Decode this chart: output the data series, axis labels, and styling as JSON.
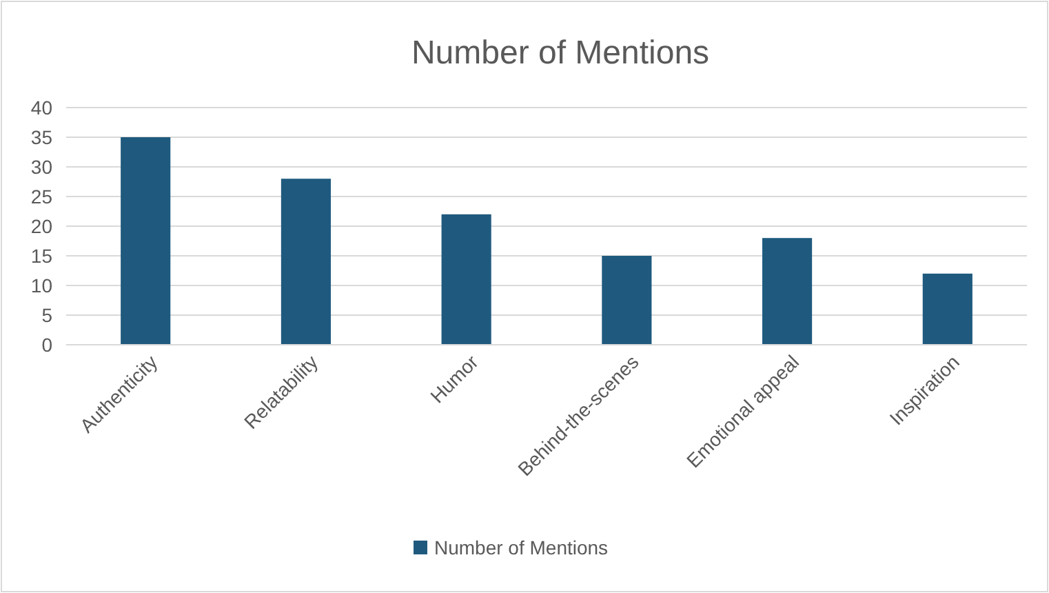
{
  "chart_data": {
    "type": "bar",
    "title": "Number of Mentions",
    "categories": [
      "Authenticity",
      "Relatability",
      "Humor",
      "Behind-the-scenes",
      "Emotional appeal",
      "Inspiration"
    ],
    "series": [
      {
        "name": "Number of Mentions",
        "color": "#1f5a7e",
        "values": [
          35,
          28,
          22,
          15,
          18,
          12
        ]
      }
    ],
    "ylim": [
      0,
      40
    ],
    "yticks": [
      0,
      5,
      10,
      15,
      20,
      25,
      30,
      35,
      40
    ],
    "grid": "y",
    "legend": "bottom"
  }
}
